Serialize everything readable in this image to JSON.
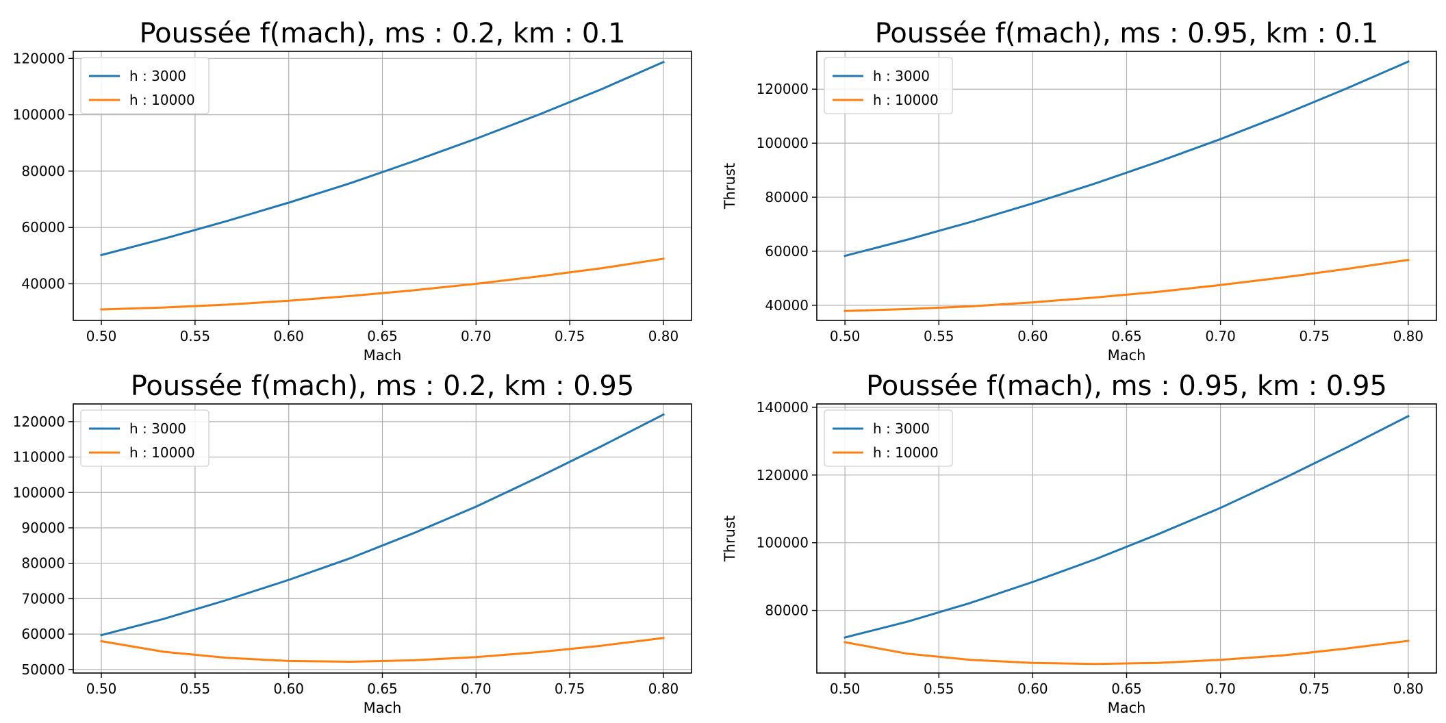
{
  "chart_data": [
    {
      "type": "line",
      "title": "Poussée f(mach), ms : 0.2, km : 0.1",
      "xlabel": "Mach",
      "ylabel": "",
      "xlim": [
        0.485,
        0.815
      ],
      "ylim": [
        27000,
        122500
      ],
      "xticks": [
        0.5,
        0.55,
        0.6,
        0.65,
        0.7,
        0.75,
        0.8
      ],
      "xtick_labels": [
        "0.50",
        "0.55",
        "0.60",
        "0.65",
        "0.70",
        "0.75",
        "0.80"
      ],
      "yticks": [
        40000,
        60000,
        80000,
        100000,
        120000
      ],
      "ytick_labels": [
        "40000",
        "60000",
        "80000",
        "100000",
        "120000"
      ],
      "x": [
        0.5,
        0.5333,
        0.5667,
        0.6,
        0.6333,
        0.6667,
        0.7,
        0.7333,
        0.7667,
        0.8
      ],
      "series": [
        {
          "name": "h : 3000",
          "color": "#1f77b4",
          "values": [
            50200,
            56000,
            62200,
            68800,
            75800,
            83500,
            91500,
            100000,
            109000,
            118700
          ]
        },
        {
          "name": "h : 10000",
          "color": "#ff7f0e",
          "values": [
            30900,
            31600,
            32600,
            34000,
            35700,
            37700,
            40000,
            42600,
            45500,
            48900
          ]
        }
      ],
      "grid": true,
      "legend": "upper-left"
    },
    {
      "type": "line",
      "title": "Poussée f(mach), ms : 0.95, km : 0.1",
      "xlabel": "Mach",
      "ylabel": "Thrust",
      "xlim": [
        0.485,
        0.815
      ],
      "ylim": [
        34400,
        134000
      ],
      "xticks": [
        0.5,
        0.55,
        0.6,
        0.65,
        0.7,
        0.75,
        0.8
      ],
      "xtick_labels": [
        "0.50",
        "0.55",
        "0.60",
        "0.65",
        "0.70",
        "0.75",
        "0.80"
      ],
      "yticks": [
        40000,
        60000,
        80000,
        100000,
        120000
      ],
      "ytick_labels": [
        "40000",
        "60000",
        "80000",
        "100000",
        "120000"
      ],
      "x": [
        0.5,
        0.5333,
        0.5667,
        0.6,
        0.6333,
        0.6667,
        0.7,
        0.7333,
        0.7667,
        0.8
      ],
      "series": [
        {
          "name": "h : 3000",
          "color": "#1f77b4",
          "values": [
            58300,
            64300,
            70800,
            77700,
            85100,
            93100,
            101500,
            110500,
            120100,
            130200
          ]
        },
        {
          "name": "h : 10000",
          "color": "#ff7f0e",
          "values": [
            37900,
            38600,
            39600,
            41100,
            42900,
            45000,
            47500,
            50300,
            53400,
            56800
          ]
        }
      ],
      "grid": true,
      "legend": "upper-left"
    },
    {
      "type": "line",
      "title": "Poussée f(mach), ms : 0.2, km : 0.95",
      "xlabel": "Mach",
      "ylabel": "",
      "xlim": [
        0.485,
        0.815
      ],
      "ylim": [
        49000,
        125000
      ],
      "xticks": [
        0.5,
        0.55,
        0.6,
        0.65,
        0.7,
        0.75,
        0.8
      ],
      "xtick_labels": [
        "0.50",
        "0.55",
        "0.60",
        "0.65",
        "0.70",
        "0.75",
        "0.80"
      ],
      "yticks": [
        50000,
        60000,
        70000,
        80000,
        90000,
        100000,
        110000,
        120000
      ],
      "ytick_labels": [
        "50000",
        "60000",
        "70000",
        "80000",
        "90000",
        "100000",
        "110000",
        "120000"
      ],
      "x": [
        0.5,
        0.5333,
        0.5667,
        0.6,
        0.6333,
        0.6667,
        0.7,
        0.7333,
        0.7667,
        0.8
      ],
      "series": [
        {
          "name": "h : 3000",
          "color": "#1f77b4",
          "values": [
            59700,
            64300,
            69600,
            75300,
            81500,
            88500,
            96000,
            104300,
            113000,
            122000
          ]
        },
        {
          "name": "h : 10000",
          "color": "#ff7f0e",
          "values": [
            58000,
            55000,
            53300,
            52400,
            52200,
            52600,
            53500,
            54900,
            56700,
            58900
          ]
        }
      ],
      "grid": true,
      "legend": "upper-left"
    },
    {
      "type": "line",
      "title": "Poussée f(mach), ms : 0.95, km : 0.95",
      "xlabel": "Mach",
      "ylabel": "Thrust",
      "xlim": [
        0.485,
        0.815
      ],
      "ylim": [
        61500,
        141000
      ],
      "xticks": [
        0.5,
        0.55,
        0.6,
        0.65,
        0.7,
        0.75,
        0.8
      ],
      "xtick_labels": [
        "0.50",
        "0.55",
        "0.60",
        "0.65",
        "0.70",
        "0.75",
        "0.80"
      ],
      "yticks": [
        80000,
        100000,
        120000,
        140000
      ],
      "ytick_labels": [
        "80000",
        "100000",
        "120000",
        "140000"
      ],
      "x": [
        0.5,
        0.5333,
        0.5667,
        0.6,
        0.6333,
        0.6667,
        0.7,
        0.7333,
        0.7667,
        0.8
      ],
      "series": [
        {
          "name": "h : 3000",
          "color": "#1f77b4",
          "values": [
            72000,
            76700,
            82200,
            88400,
            95100,
            102500,
            110300,
            118900,
            128000,
            137400
          ]
        },
        {
          "name": "h : 10000",
          "color": "#ff7f0e",
          "values": [
            70600,
            67200,
            65400,
            64500,
            64200,
            64500,
            65400,
            66700,
            68700,
            71000
          ]
        }
      ],
      "grid": true,
      "legend": "upper-left"
    }
  ]
}
